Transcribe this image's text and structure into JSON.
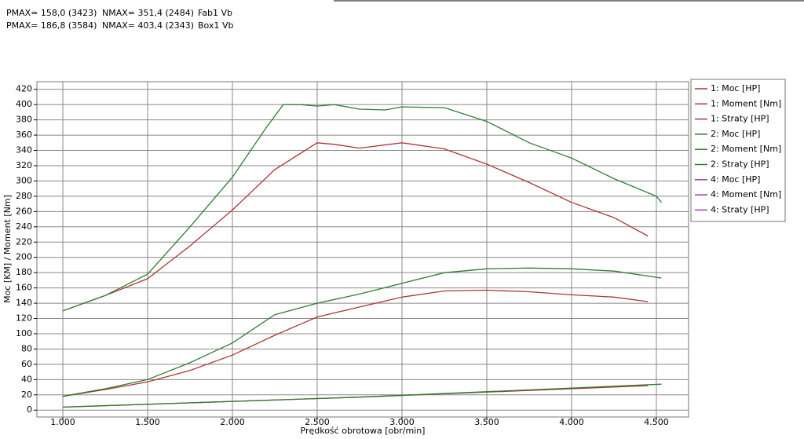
{
  "chart_data": {
    "type": "line",
    "header": [
      [
        "PMAX= 158,0 (3423)",
        "NMAX= 351,4 (2484)",
        "Fab1 Vb"
      ],
      [
        "PMAX= 186,8 (3584)",
        "NMAX= 403,4 (2343)",
        "Box1 Vb"
      ]
    ],
    "x_label": "Prędkość obrotowa [obr/min]",
    "y_label": "Moc [KM] / Moment [Nm]",
    "xlim": [
      847,
      4690
    ],
    "ylim": [
      -9,
      430
    ],
    "xticks": [
      {
        "value": 1000,
        "label": "1.000"
      },
      {
        "value": 1500,
        "label": "1.500"
      },
      {
        "value": 2000,
        "label": "2.000"
      },
      {
        "value": 2500,
        "label": "2.500"
      },
      {
        "value": 3000,
        "label": "3.000"
      },
      {
        "value": 3500,
        "label": "3.500"
      },
      {
        "value": 4000,
        "label": "4.000"
      },
      {
        "value": 4500,
        "label": "4.500"
      }
    ],
    "yticks": [
      0,
      20,
      40,
      60,
      80,
      100,
      120,
      140,
      160,
      180,
      200,
      220,
      240,
      260,
      280,
      300,
      320,
      340,
      360,
      380,
      400,
      420
    ],
    "grid": true,
    "legend": "right",
    "series": [
      {
        "name": "1: Moc [HP]",
        "color": "#b03434",
        "x": [
          1000,
          1250,
          1500,
          1750,
          2000,
          2250,
          2500,
          2750,
          3000,
          3250,
          3500,
          3750,
          4000,
          4250,
          4450
        ],
        "values": [
          18,
          27,
          37,
          52,
          72,
          98,
          122,
          135,
          148,
          156,
          157,
          155,
          151,
          148,
          142
        ]
      },
      {
        "name": "1: Moment [Nm]",
        "color": "#b03434",
        "x": [
          1000,
          1250,
          1500,
          1750,
          2000,
          2250,
          2500,
          2600,
          2750,
          3000,
          3250,
          3500,
          3750,
          4000,
          4250,
          4450
        ],
        "values": [
          130,
          150,
          172,
          215,
          262,
          315,
          350,
          348,
          343,
          350,
          342,
          322,
          298,
          272,
          252,
          228
        ]
      },
      {
        "name": "1: Straty [HP]",
        "color": "#b03434",
        "x": [
          1000,
          2750,
          4450
        ],
        "values": [
          4,
          17,
          32
        ]
      },
      {
        "name": "2: Moc [HP]",
        "color": "#2e7d32",
        "x": [
          1000,
          1250,
          1500,
          1750,
          2000,
          2250,
          2500,
          2750,
          3000,
          3250,
          3500,
          3750,
          4000,
          4250,
          4530
        ],
        "values": [
          18,
          28,
          40,
          62,
          88,
          125,
          140,
          152,
          166,
          180,
          185,
          186,
          185,
          182,
          173
        ]
      },
      {
        "name": "2: Moment [Nm]",
        "color": "#2e7d32",
        "x": [
          1000,
          1250,
          1500,
          1750,
          2000,
          2200,
          2300,
          2400,
          2500,
          2600,
          2750,
          2900,
          3000,
          3250,
          3500,
          3750,
          4000,
          4250,
          4500,
          4530
        ],
        "values": [
          130,
          150,
          178,
          240,
          305,
          370,
          400,
          400,
          398,
          400,
          394,
          393,
          397,
          396,
          378,
          350,
          330,
          303,
          280,
          272
        ]
      },
      {
        "name": "2: Straty [HP]",
        "color": "#2e7d32",
        "x": [
          1000,
          2750,
          4530
        ],
        "values": [
          4,
          17,
          34
        ]
      },
      {
        "name": "4: Moc [HP]",
        "color": "#a040a0",
        "x": [],
        "values": []
      },
      {
        "name": "4: Moment [Nm]",
        "color": "#a040a0",
        "x": [],
        "values": []
      },
      {
        "name": "4: Straty [HP]",
        "color": "#a040a0",
        "x": [],
        "values": []
      }
    ]
  }
}
